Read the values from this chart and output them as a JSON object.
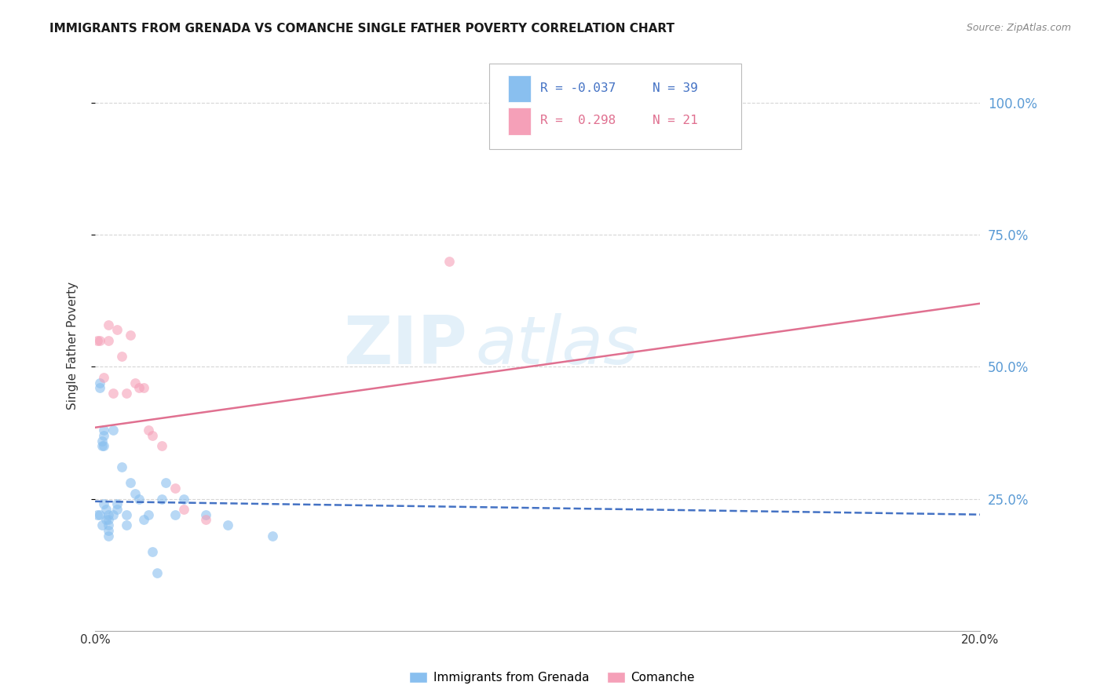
{
  "title": "IMMIGRANTS FROM GRENADA VS COMANCHE SINGLE FATHER POVERTY CORRELATION CHART",
  "source": "Source: ZipAtlas.com",
  "ylabel": "Single Father Poverty",
  "right_yticks": [
    "100.0%",
    "75.0%",
    "50.0%",
    "25.0%"
  ],
  "right_ytick_vals": [
    1.0,
    0.75,
    0.5,
    0.25
  ],
  "xmin": 0.0,
  "xmax": 0.2,
  "ymin": 0.0,
  "ymax": 1.08,
  "watermark_zip": "ZIP",
  "watermark_atlas": "atlas",
  "grenada_scatter_x": [
    0.0005,
    0.001,
    0.001,
    0.001,
    0.0015,
    0.0015,
    0.0015,
    0.002,
    0.002,
    0.002,
    0.002,
    0.0025,
    0.0025,
    0.003,
    0.003,
    0.003,
    0.003,
    0.003,
    0.004,
    0.004,
    0.005,
    0.005,
    0.006,
    0.007,
    0.007,
    0.008,
    0.009,
    0.01,
    0.011,
    0.012,
    0.013,
    0.014,
    0.015,
    0.016,
    0.018,
    0.02,
    0.025,
    0.03,
    0.04
  ],
  "grenada_scatter_y": [
    0.22,
    0.47,
    0.46,
    0.22,
    0.36,
    0.35,
    0.2,
    0.38,
    0.37,
    0.35,
    0.24,
    0.23,
    0.21,
    0.22,
    0.21,
    0.2,
    0.19,
    0.18,
    0.38,
    0.22,
    0.24,
    0.23,
    0.31,
    0.22,
    0.2,
    0.28,
    0.26,
    0.25,
    0.21,
    0.22,
    0.15,
    0.11,
    0.25,
    0.28,
    0.22,
    0.25,
    0.22,
    0.2,
    0.18
  ],
  "comanche_scatter_x": [
    0.0005,
    0.001,
    0.002,
    0.003,
    0.003,
    0.004,
    0.005,
    0.006,
    0.007,
    0.008,
    0.009,
    0.01,
    0.011,
    0.012,
    0.013,
    0.015,
    0.018,
    0.02,
    0.025,
    0.08,
    0.12
  ],
  "comanche_scatter_y": [
    0.55,
    0.55,
    0.48,
    0.58,
    0.55,
    0.45,
    0.57,
    0.52,
    0.45,
    0.56,
    0.47,
    0.46,
    0.46,
    0.38,
    0.37,
    0.35,
    0.27,
    0.23,
    0.21,
    0.7,
    0.95
  ],
  "grenada_line_x": [
    0.0,
    0.2
  ],
  "grenada_line_y": [
    0.245,
    0.22
  ],
  "comanche_line_x": [
    0.0,
    0.2
  ],
  "comanche_line_y": [
    0.385,
    0.62
  ],
  "scatter_alpha": 0.6,
  "scatter_size": 85,
  "grenada_color": "#89bfef",
  "comanche_color": "#f5a0b8",
  "grenada_line_color": "#4472c4",
  "comanche_line_color": "#e07090",
  "grid_color": "#cccccc",
  "right_axis_color": "#5b9bd5",
  "background_color": "#ffffff",
  "legend_r1": "R = -0.037",
  "legend_n1": "N = 39",
  "legend_r2": "R =  0.298",
  "legend_n2": "N = 21"
}
